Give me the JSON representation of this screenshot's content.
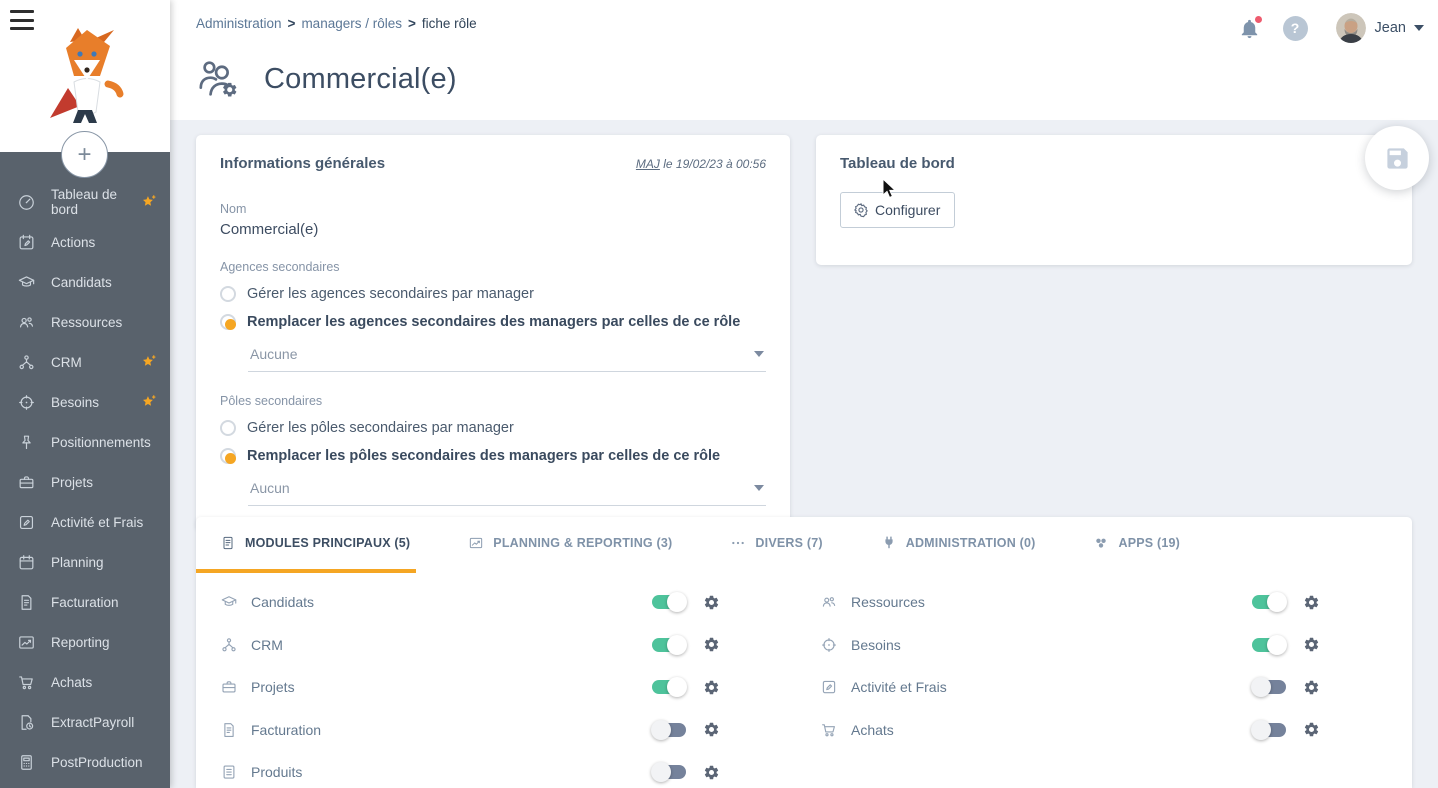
{
  "colors": {
    "accent_orange": "#F5A623",
    "toggle_on": "#4EC39B",
    "toggle_off": "#75829B",
    "sidebar_bg": "#59626C",
    "notification_red": "#EE5B6E"
  },
  "sidebar": {
    "plus_label": "+",
    "items": [
      {
        "label": "Tableau de bord",
        "icon": "gauge-icon",
        "sparkle": true
      },
      {
        "label": "Actions",
        "icon": "calendar-edit-icon",
        "sparkle": false
      },
      {
        "label": "Candidats",
        "icon": "graduation-cap-icon",
        "sparkle": false
      },
      {
        "label": "Ressources",
        "icon": "people-icon",
        "sparkle": false
      },
      {
        "label": "CRM",
        "icon": "sitemap-icon",
        "sparkle": true
      },
      {
        "label": "Besoins",
        "icon": "target-icon",
        "sparkle": true
      },
      {
        "label": "Positionnements",
        "icon": "pin-icon",
        "sparkle": false
      },
      {
        "label": "Projets",
        "icon": "briefcase-icon",
        "sparkle": false
      },
      {
        "label": "Activité et Frais",
        "icon": "edit-square-icon",
        "sparkle": false
      },
      {
        "label": "Planning",
        "icon": "calendar-icon",
        "sparkle": false
      },
      {
        "label": "Facturation",
        "icon": "invoice-icon",
        "sparkle": false
      },
      {
        "label": "Reporting",
        "icon": "chart-icon",
        "sparkle": false
      },
      {
        "label": "Achats",
        "icon": "cart-icon",
        "sparkle": false
      },
      {
        "label": "ExtractPayroll",
        "icon": "file-clock-icon",
        "sparkle": false
      },
      {
        "label": "PostProduction",
        "icon": "calculator-icon",
        "sparkle": false
      }
    ]
  },
  "header": {
    "separator": ">",
    "breadcrumb": [
      {
        "label": "Administration",
        "current": false
      },
      {
        "label": "managers / rôles",
        "current": false
      },
      {
        "label": "fiche rôle",
        "current": true
      }
    ],
    "help_label": "?",
    "user_name": "Jean",
    "has_notification": true
  },
  "page": {
    "title": "Commercial(e)"
  },
  "info_card": {
    "title": "Informations générales",
    "maj_label": "MAJ",
    "maj_rest": " le 19/02/23 à 00:56",
    "nom_label": "Nom",
    "nom_value": "Commercial(e)",
    "agences": {
      "label": "Agences secondaires",
      "options": [
        {
          "label": "Gérer les agences secondaires par manager",
          "selected": false
        },
        {
          "label": "Remplacer les agences secondaires des managers par celles de ce rôle",
          "selected": true
        }
      ],
      "select_value": "Aucune"
    },
    "poles": {
      "label": "Pôles secondaires",
      "options": [
        {
          "label": "Gérer les pôles secondaires par manager",
          "selected": false
        },
        {
          "label": "Remplacer les pôles secondaires des managers par celles de ce rôle",
          "selected": true
        }
      ],
      "select_value": "Aucun"
    }
  },
  "dashboard_card": {
    "title": "Tableau de bord",
    "configure_label": "Configurer"
  },
  "modules_card": {
    "tabs": [
      {
        "label": "MODULES PRINCIPAUX (5)",
        "icon": "form-icon",
        "active": true
      },
      {
        "label": "PLANNING & REPORTING (3)",
        "icon": "chart-icon",
        "active": false
      },
      {
        "label": "DIVERS (7)",
        "icon": "ellipsis-icon",
        "active": false
      },
      {
        "label": "ADMINISTRATION (0)",
        "icon": "plug-icon",
        "active": false
      },
      {
        "label": "APPS (19)",
        "icon": "apps-icon",
        "active": false
      }
    ],
    "columns": [
      [
        {
          "label": "Candidats",
          "icon": "graduation-cap-icon",
          "enabled": true
        },
        {
          "label": "CRM",
          "icon": "sitemap-icon",
          "enabled": true
        },
        {
          "label": "Projets",
          "icon": "briefcase-icon",
          "enabled": true
        },
        {
          "label": "Facturation",
          "icon": "invoice-icon",
          "enabled": false
        },
        {
          "label": "Produits",
          "icon": "list-icon",
          "enabled": false
        }
      ],
      [
        {
          "label": "Ressources",
          "icon": "people-icon",
          "enabled": true
        },
        {
          "label": "Besoins",
          "icon": "target-icon",
          "enabled": true
        },
        {
          "label": "Activité et Frais",
          "icon": "edit-square-icon",
          "enabled": false
        },
        {
          "label": "Achats",
          "icon": "cart-icon",
          "enabled": false
        }
      ]
    ]
  }
}
